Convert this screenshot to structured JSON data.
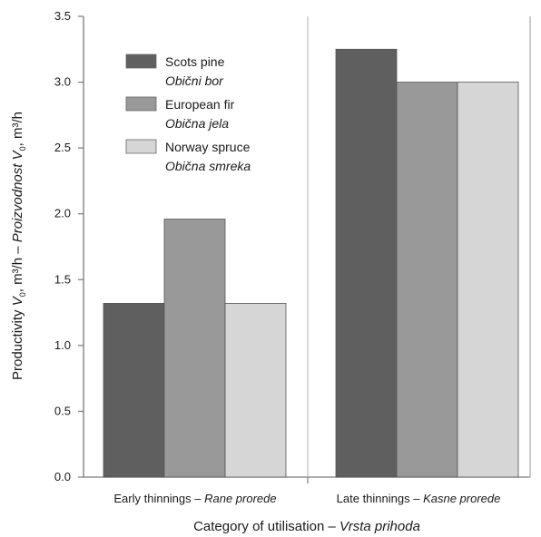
{
  "chart_data": {
    "type": "bar",
    "categories": [
      {
        "label": "Early thinnings – ",
        "label_italic": "Rane prorede"
      },
      {
        "label": "Late thinnings – ",
        "label_italic": "Kasne prorede"
      }
    ],
    "series": [
      {
        "name": "Scots pine",
        "name_italic": "Obični bor",
        "color": "#5f5f5f",
        "values": [
          1.32,
          3.25
        ]
      },
      {
        "name": "European fir",
        "name_italic": "Obična jela",
        "color": "#999999",
        "values": [
          1.96,
          3.0
        ]
      },
      {
        "name": "Norway spruce",
        "name_italic": "Obična smreka",
        "color": "#d6d6d6",
        "values": [
          1.32,
          3.0
        ]
      }
    ],
    "xlabel": {
      "text": "Category of utilisation – ",
      "italic": "Vrsta prihoda"
    },
    "ylabel": {
      "part1": "Productivity  ",
      "part1_var": "V",
      "part1_sub": "0",
      "part1_unit": ", m³/h – ",
      "part2": "Proizvodnost  ",
      "part2_var": "V",
      "part2_sub": "0",
      "part2_unit": ", m³/h"
    },
    "ylim": [
      0,
      3.5
    ],
    "yticks": [
      "0.0",
      "0.5",
      "1.0",
      "1.5",
      "2.0",
      "2.5",
      "3.0",
      "3.5"
    ],
    "grid": "vertical-separator",
    "legend": "top-left"
  }
}
